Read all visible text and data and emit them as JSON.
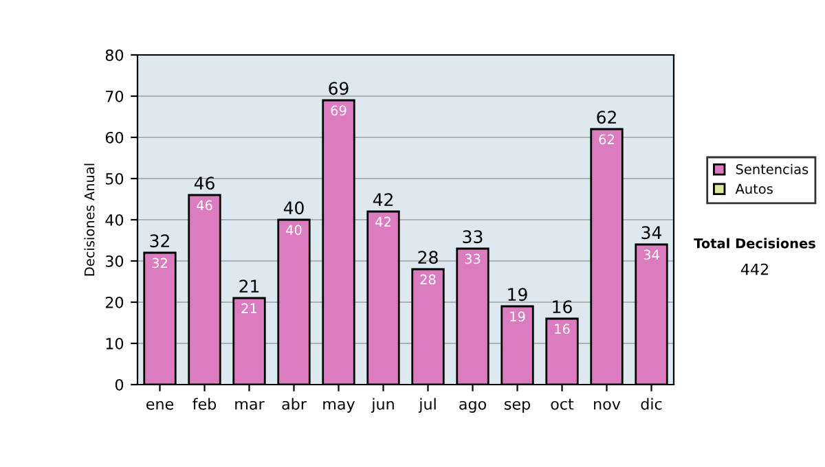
{
  "chart_data": {
    "type": "bar",
    "ylabel": "Decisiones Anual",
    "categories": [
      "ene",
      "feb",
      "mar",
      "abr",
      "may",
      "jun",
      "jul",
      "ago",
      "sep",
      "oct",
      "nov",
      "dic"
    ],
    "series": [
      {
        "name": "Sentencias",
        "color": "#dc7cc0",
        "values": [
          32,
          46,
          21,
          40,
          69,
          42,
          28,
          33,
          19,
          16,
          62,
          34
        ]
      },
      {
        "name": "Autos",
        "color": "#d8e8a0",
        "values": [
          null,
          null,
          null,
          null,
          null,
          null,
          null,
          null,
          null,
          null,
          null,
          null
        ]
      }
    ],
    "stacked": true,
    "data_labels": true,
    "totals": [
      "32",
      "46",
      "21",
      "40",
      "69",
      "42",
      "28",
      "33",
      "19",
      "16",
      "62",
      "34"
    ],
    "ylim": [
      0,
      80
    ],
    "yticks": [
      0,
      10,
      20,
      30,
      40,
      50,
      60,
      70,
      80
    ],
    "grid": "y",
    "legend": "right",
    "annotations": [
      "Total Decisiones",
      "442"
    ]
  }
}
